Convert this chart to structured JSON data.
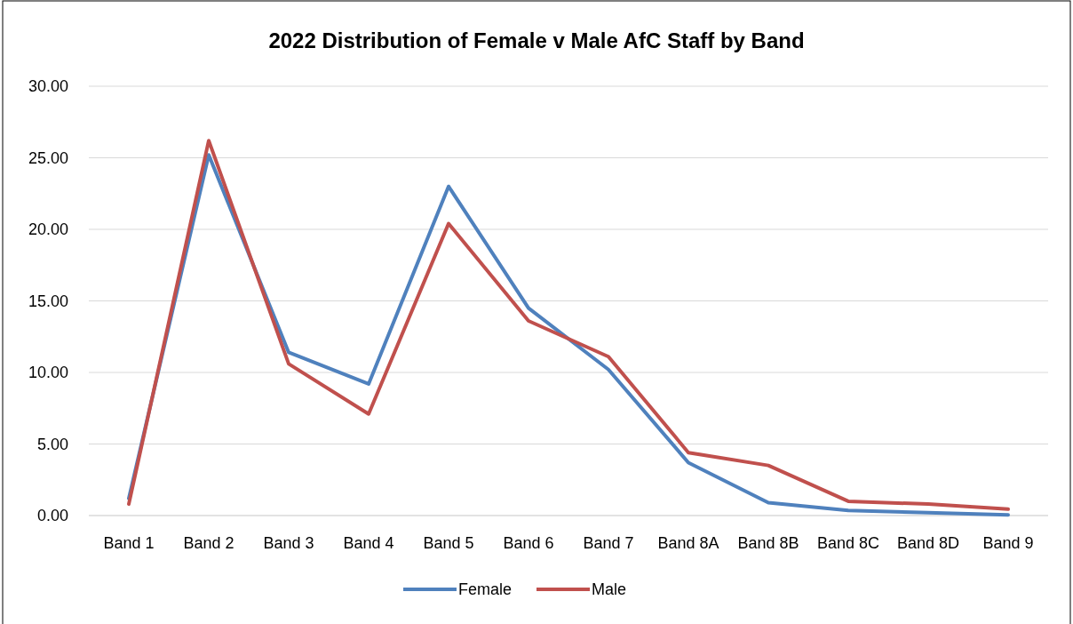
{
  "chart_data": {
    "type": "line",
    "title": "2022 Distribution of Female v Male AfC Staff by Band",
    "categories": [
      "Band 1",
      "Band 2",
      "Band 3",
      "Band 4",
      "Band 5",
      "Band 6",
      "Band 7",
      "Band 8A",
      "Band 8B",
      "Band 8C",
      "Band 8D",
      "Band 9"
    ],
    "series": [
      {
        "name": "Female",
        "color": "#4f81bd",
        "values": [
          1.2,
          25.2,
          11.4,
          9.2,
          23.0,
          14.5,
          10.2,
          3.7,
          0.9,
          0.35,
          0.2,
          0.05
        ]
      },
      {
        "name": "Male",
        "color": "#c0504d",
        "values": [
          0.8,
          26.2,
          10.6,
          7.1,
          20.4,
          13.6,
          11.1,
          4.4,
          3.5,
          1.0,
          0.8,
          0.45
        ]
      }
    ],
    "ylim": [
      0,
      30
    ],
    "yticks": [
      {
        "value": 0,
        "label": "0.00"
      },
      {
        "value": 5,
        "label": "5.00"
      },
      {
        "value": 10,
        "label": "10.00"
      },
      {
        "value": 15,
        "label": "15.00"
      },
      {
        "value": 20,
        "label": "20.00"
      },
      {
        "value": 25,
        "label": "25.00"
      },
      {
        "value": 30,
        "label": "30.00"
      }
    ],
    "grid": "y",
    "legend": "bottom",
    "marker": "none",
    "line_style": "solid"
  }
}
